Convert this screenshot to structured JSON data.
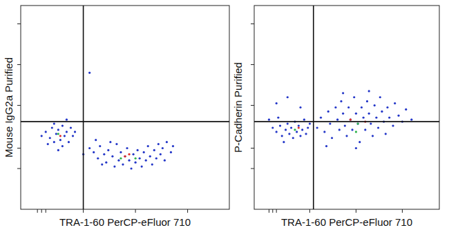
{
  "chart_data": [
    {
      "type": "scatter",
      "x_label": "TRA-1-60 PerCP-eFluor 710",
      "y_label": "Mouse IgG2a Purified",
      "xlim": [
        0,
        100
      ],
      "ylim": [
        0,
        100
      ],
      "xticks": [
        8,
        10,
        12,
        30,
        55,
        80
      ],
      "yticks": [
        20,
        30,
        51,
        71,
        91
      ],
      "tick_labels": false,
      "grid": false,
      "quadrant": {
        "x": 30,
        "y": 43
      },
      "series": [
        {
          "color": "#2336c8",
          "x": [
            12,
            14,
            15,
            16,
            17,
            18,
            19,
            20,
            21,
            22,
            23,
            24,
            25,
            13,
            16,
            20,
            22,
            26,
            10,
            18,
            33,
            35,
            37,
            38,
            40,
            41,
            42,
            44,
            45,
            46,
            47,
            48,
            49,
            50,
            51,
            52,
            53,
            54,
            55,
            56,
            57,
            58,
            59,
            60,
            61,
            62,
            63,
            64,
            65,
            66,
            67,
            68,
            69,
            70,
            72,
            73,
            36,
            43,
            39,
            30,
            33
          ],
          "values": [
            38,
            35,
            40,
            33,
            37,
            39,
            34,
            41,
            36,
            38,
            33,
            40,
            36,
            32,
            42,
            31,
            44,
            38,
            36,
            29,
            30,
            28,
            25,
            31,
            27,
            23,
            29,
            26,
            21,
            32,
            24,
            28,
            22,
            26,
            30,
            24,
            20,
            27,
            23,
            29,
            25,
            21,
            28,
            24,
            31,
            26,
            22,
            29,
            25,
            32,
            27,
            30,
            24,
            33,
            28,
            31,
            34,
            33,
            22,
            27,
            67
          ]
        },
        {
          "color": "#2fb34a",
          "x": [
            18,
            48,
            55
          ],
          "values": [
            37,
            25,
            25
          ]
        },
        {
          "color": "#e0302a",
          "x": [
            19,
            50,
            52
          ],
          "values": [
            36,
            26,
            27
          ]
        }
      ]
    },
    {
      "type": "scatter",
      "x_label": "TRA-1-60 PerCP-eFluor 710",
      "y_label": "P-Cadherin Purified",
      "xlim": [
        0,
        100
      ],
      "ylim": [
        0,
        100
      ],
      "xticks": [
        8,
        10,
        12,
        30,
        55,
        80
      ],
      "yticks": [
        20,
        30,
        51,
        71,
        91
      ],
      "tick_labels": false,
      "grid": false,
      "quadrant": {
        "x": 32,
        "y": 43
      },
      "series": [
        {
          "color": "#2336c8",
          "x": [
            12,
            14,
            15,
            17,
            18,
            19,
            20,
            21,
            22,
            23,
            24,
            25,
            26,
            27,
            28,
            29,
            16,
            30,
            10,
            13,
            12,
            18,
            25,
            8,
            34,
            36,
            38,
            40,
            41,
            42,
            44,
            45,
            46,
            47,
            48,
            49,
            50,
            51,
            52,
            53,
            54,
            55,
            56,
            57,
            58,
            59,
            60,
            61,
            62,
            63,
            64,
            65,
            66,
            67,
            68,
            69,
            70,
            71,
            72,
            73,
            75,
            76,
            78,
            80,
            82,
            85,
            39,
            55,
            62,
            48
          ],
          "values": [
            38,
            41,
            36,
            39,
            42,
            37,
            40,
            35,
            43,
            38,
            41,
            36,
            39,
            44,
            37,
            40,
            33,
            42,
            40,
            45,
            52,
            55,
            50,
            44,
            40,
            45,
            38,
            48,
            42,
            35,
            50,
            44,
            39,
            53,
            47,
            41,
            36,
            50,
            44,
            39,
            55,
            47,
            42,
            33,
            50,
            45,
            39,
            53,
            47,
            42,
            36,
            51,
            45,
            40,
            55,
            48,
            43,
            37,
            50,
            45,
            41,
            52,
            46,
            43,
            49,
            44,
            31,
            30,
            58,
            57
          ]
        },
        {
          "color": "#2fb34a",
          "x": [
            22,
            56,
            55
          ],
          "values": [
            39,
            42,
            38
          ]
        },
        {
          "color": "#e0302a",
          "x": [
            24,
            52,
            60
          ],
          "values": [
            40,
            44,
            43
          ]
        }
      ]
    }
  ]
}
